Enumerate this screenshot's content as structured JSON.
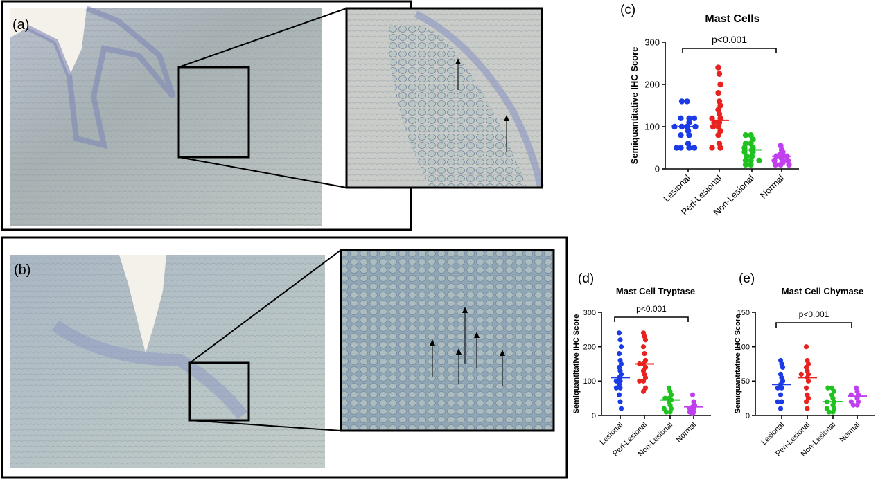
{
  "image_panels": [
    {
      "label": "(a)"
    },
    {
      "label": "(b)"
    }
  ],
  "chart_data": [
    {
      "type": "dot",
      "label": "(c)",
      "title": "Mast Cells",
      "y_label": "Semiquantitative  IHC Score",
      "annotation": "p<0.001",
      "categories": [
        "Lesional",
        "Peri-Lesional",
        "Non-Lesional",
        "Normal"
      ],
      "ylim": [
        0,
        300
      ],
      "yticks": [
        0,
        100,
        200,
        300
      ],
      "groups": [
        {
          "color": "#1a3be6",
          "median": 100,
          "values": [
            160,
            160,
            120,
            120,
            120,
            110,
            100,
            100,
            100,
            100,
            90,
            80,
            80,
            60,
            50,
            50,
            50,
            50
          ]
        },
        {
          "color": "#e8231f",
          "median": 115,
          "values": [
            240,
            225,
            200,
            180,
            160,
            150,
            140,
            130,
            120,
            120,
            110,
            110,
            100,
            100,
            90,
            80,
            60,
            50,
            50
          ]
        },
        {
          "color": "#1fc21f",
          "median": 45,
          "values": [
            80,
            80,
            70,
            60,
            60,
            50,
            50,
            45,
            40,
            40,
            30,
            30,
            20,
            20,
            20,
            10,
            10
          ]
        },
        {
          "color": "#c040f0",
          "median": 30,
          "values": [
            55,
            45,
            40,
            35,
            30,
            30,
            30,
            25,
            20,
            20,
            20,
            15,
            10,
            10,
            10
          ]
        }
      ]
    },
    {
      "type": "dot",
      "label": "(d)",
      "title": "Mast Cell Tryptase",
      "y_label": "Semiquantitative  IHC Score",
      "annotation": "p<0.001",
      "categories": [
        "Lesional",
        "Peri-Lesional",
        "Non-Lesional",
        "Normal"
      ],
      "ylim": [
        0,
        300
      ],
      "yticks": [
        0,
        100,
        200,
        300
      ],
      "groups": [
        {
          "color": "#1a3be6",
          "median": 110,
          "values": [
            240,
            220,
            200,
            180,
            160,
            150,
            140,
            130,
            120,
            110,
            100,
            100,
            90,
            80,
            80,
            60,
            40,
            20
          ]
        },
        {
          "color": "#e8231f",
          "median": 150,
          "values": [
            240,
            230,
            220,
            200,
            180,
            160,
            150,
            150,
            140,
            130,
            120,
            110,
            100,
            100,
            80,
            70
          ]
        },
        {
          "color": "#1fc21f",
          "median": 45,
          "values": [
            80,
            70,
            60,
            50,
            50,
            45,
            40,
            30,
            20,
            20,
            10,
            10
          ]
        },
        {
          "color": "#c040f0",
          "median": 25,
          "values": [
            60,
            40,
            30,
            25,
            20,
            20,
            15,
            10,
            10,
            5
          ]
        }
      ]
    },
    {
      "type": "dot",
      "label": "(e)",
      "title": "Mast Cell Chymase",
      "y_label": "Semiquantitative  IHC Score",
      "annotation": "p<0.001",
      "categories": [
        "Lesional",
        "Peri-Lesional",
        "Non-Lesional",
        "Normal"
      ],
      "ylim": [
        0,
        150
      ],
      "yticks": [
        0,
        50,
        100,
        150
      ],
      "groups": [
        {
          "color": "#1a3be6",
          "median": 45,
          "values": [
            80,
            75,
            70,
            60,
            55,
            50,
            45,
            40,
            40,
            30,
            20,
            20,
            10
          ]
        },
        {
          "color": "#e8231f",
          "median": 55,
          "values": [
            100,
            80,
            75,
            70,
            65,
            60,
            60,
            55,
            50,
            40,
            30,
            25,
            20,
            10
          ]
        },
        {
          "color": "#1fc21f",
          "median": 20,
          "values": [
            40,
            40,
            35,
            30,
            25,
            20,
            20,
            15,
            10,
            10,
            5,
            5
          ]
        },
        {
          "color": "#c040f0",
          "median": 28,
          "values": [
            40,
            35,
            30,
            30,
            25,
            20,
            20,
            15,
            15
          ]
        }
      ]
    }
  ]
}
